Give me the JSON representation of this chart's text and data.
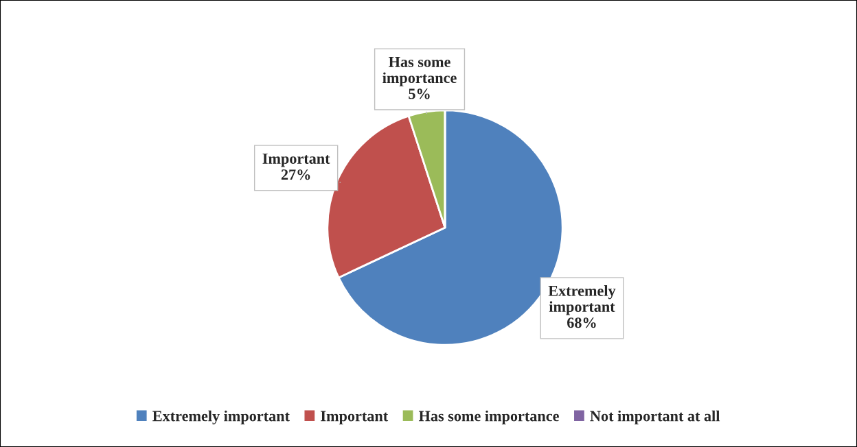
{
  "chart_data": {
    "type": "pie",
    "categories": [
      "Extremely important",
      "Important",
      "Has some importance",
      "Not important at all"
    ],
    "values": [
      68,
      27,
      5,
      0
    ],
    "colors": [
      "#4f81bd",
      "#c0504d",
      "#9bbb59",
      "#8064a2"
    ],
    "value_labels": [
      "Extremely\nimportant\n68%",
      "Important\n27%",
      "Has some\nimportance\n5%",
      null
    ],
    "legend": "bottom"
  }
}
